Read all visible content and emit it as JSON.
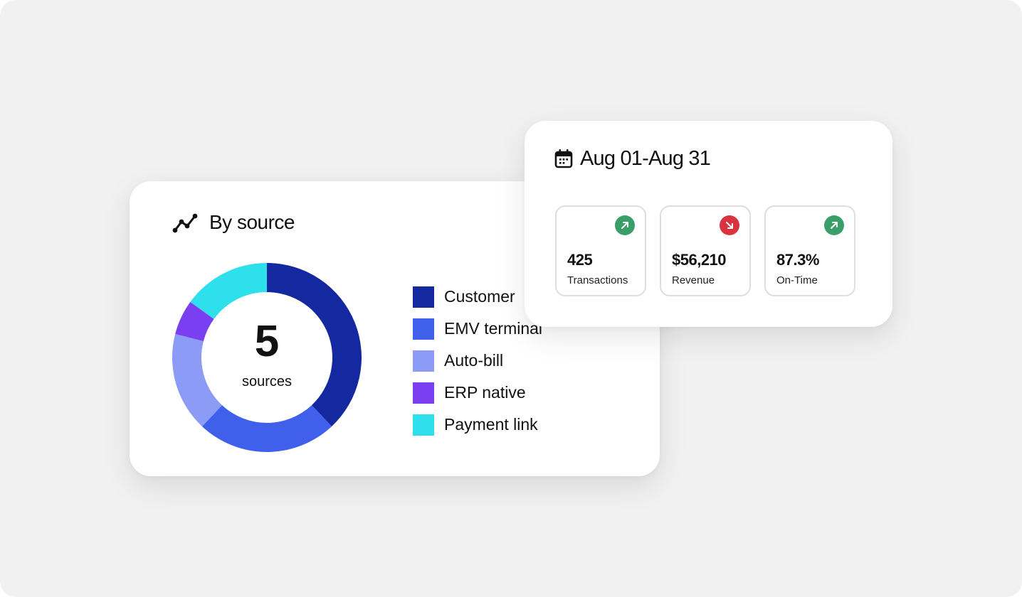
{
  "source_card": {
    "title": "By source",
    "icon": "trend-line-icon",
    "center_count": "5",
    "center_caption": "sources"
  },
  "chart_data": {
    "type": "pie",
    "style": "donut",
    "categories": [
      "Customer",
      "EMV terminal",
      "Auto-bill",
      "ERP native",
      "Payment link"
    ],
    "values": [
      38,
      24,
      17,
      6,
      15
    ],
    "colors": [
      "#1428a0",
      "#4060ec",
      "#8c9bf5",
      "#7b3ff2",
      "#2ee0ec"
    ],
    "legend_position": "right"
  },
  "stats_card": {
    "icon": "calendar-icon",
    "date_range": "Aug 01-Aug 31",
    "tiles": [
      {
        "value": "425",
        "label": "Transactions",
        "trend": "up",
        "trend_icon": "arrow-up-right-icon",
        "trend_color": "#3a9e68"
      },
      {
        "value": "$56,210",
        "label": "Revenue",
        "trend": "down",
        "trend_icon": "arrow-down-right-icon",
        "trend_color": "#d8333f"
      },
      {
        "value": "87.3%",
        "label": "On-Time",
        "trend": "up",
        "trend_icon": "arrow-up-right-icon",
        "trend_color": "#3a9e68"
      }
    ]
  }
}
